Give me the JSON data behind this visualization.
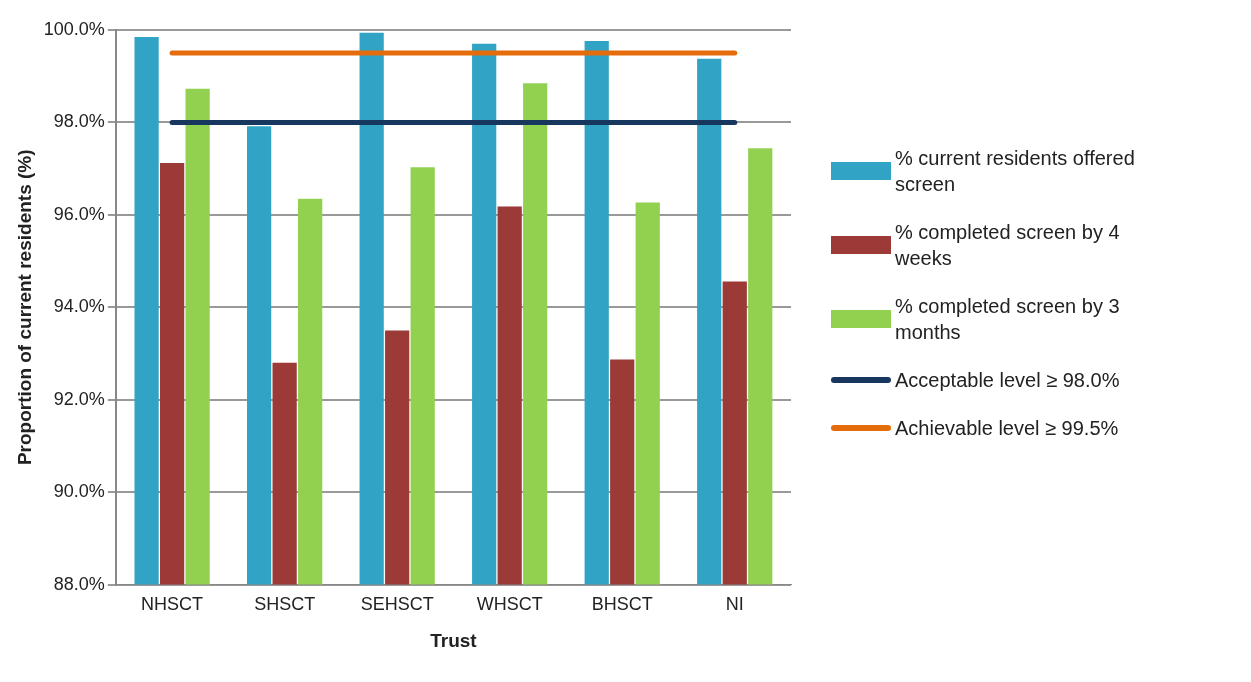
{
  "chart_data": {
    "type": "bar",
    "xlabel": "Trust",
    "ylabel": "Proportion of current residents (%)",
    "categories": [
      "NHSCT",
      "SHSCT",
      "SEHSCT",
      "WHSCT",
      "BHSCT",
      "NI"
    ],
    "series": [
      {
        "name": "% current residents offered screen",
        "color": "#31a3c4",
        "values": [
          99.85,
          97.92,
          99.94,
          99.7,
          99.76,
          99.38
        ]
      },
      {
        "name": "% completed screen by 4 weeks",
        "color": "#9b3a37",
        "values": [
          97.12,
          92.8,
          93.5,
          96.18,
          92.87,
          94.56
        ]
      },
      {
        "name": "% completed screen by 3 months",
        "color": "#92d050",
        "values": [
          98.73,
          96.35,
          97.03,
          98.85,
          96.27,
          97.44
        ]
      },
      {
        "name": "Acceptable level ≥ 98.0%",
        "type": "line",
        "color": "#17375e",
        "values": [
          98,
          98,
          98,
          98,
          98,
          98
        ]
      },
      {
        "name": "Achievable level ≥ 99.5%",
        "type": "line",
        "color": "#e46c0a",
        "values": [
          99.5,
          99.5,
          99.5,
          99.5,
          99.5,
          99.5
        ]
      }
    ],
    "ylim": [
      88,
      100
    ],
    "yticks": [
      {
        "value": 88,
        "label": "88.0%"
      },
      {
        "value": 90,
        "label": "90.0%"
      },
      {
        "value": 92,
        "label": "92.0%"
      },
      {
        "value": 94,
        "label": "94.0%"
      },
      {
        "value": 96,
        "label": "96.0%"
      },
      {
        "value": 98,
        "label": "98.0%"
      },
      {
        "value": 100,
        "label": "100.0%"
      }
    ],
    "grid": "y",
    "legend": "right",
    "marker": "none",
    "line_style": "solid"
  }
}
